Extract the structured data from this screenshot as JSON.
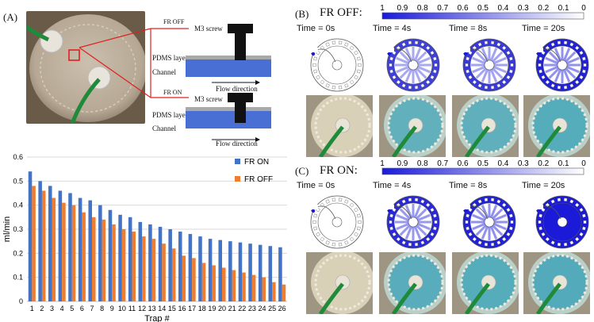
{
  "panel_a": {
    "label": "(A)",
    "diagram": {
      "off": {
        "state": "FR OFF",
        "screw": "M3 screw",
        "layer": "PDMS layer",
        "channel": "Channel",
        "flow": "Flow direction"
      },
      "on": {
        "state": "FR ON",
        "screw": "M3 screw",
        "layer": "PDMS layer",
        "channel": "Channel",
        "flow": "Flow direction"
      }
    }
  },
  "panel_b": {
    "label": "(B)",
    "title": "FR OFF:",
    "colorbar_ticks": [
      "1",
      "0.9",
      "0.8",
      "0.7",
      "0.6",
      "0.5",
      "0.4",
      "0.3",
      "0.2",
      "0.1",
      "0"
    ],
    "times": [
      "Time = 0s",
      "Time = 4s",
      "Time = 8s",
      "Time = 20s"
    ],
    "sim_fill": [
      0.05,
      0.75,
      0.8,
      0.95
    ]
  },
  "panel_c": {
    "label": "(C)",
    "title": "FR ON:",
    "colorbar_ticks": [
      "1",
      "0.9",
      "0.8",
      "0.7",
      "0.6",
      "0.5",
      "0.4",
      "0.3",
      "0.2",
      "0.1",
      "0"
    ],
    "times": [
      "Time = 0s",
      "Time = 4s",
      "Time = 8s",
      "Time = 20s"
    ],
    "sim_fill": [
      0.05,
      0.9,
      0.95,
      1.0
    ]
  },
  "colors": {
    "on": "#4472C4",
    "off": "#ED7D31",
    "sim": "#1a1ad8"
  },
  "chart_data": {
    "type": "bar",
    "xlabel": "Trap #",
    "ylabel": "ml/min",
    "ylim": [
      0,
      0.6
    ],
    "yticks": [
      "0",
      "0.1",
      "0.2",
      "0.3",
      "0.4",
      "0.5",
      "0.6"
    ],
    "legend_position": "top-right",
    "grid": true,
    "categories": [
      "1",
      "2",
      "3",
      "4",
      "5",
      "6",
      "7",
      "8",
      "9",
      "10",
      "11",
      "12",
      "13",
      "14",
      "15",
      "16",
      "17",
      "18",
      "19",
      "20",
      "21",
      "22",
      "23",
      "24",
      "25",
      "26"
    ],
    "series": [
      {
        "name": "FR ON",
        "values": [
          0.54,
          0.5,
          0.48,
          0.46,
          0.45,
          0.43,
          0.42,
          0.4,
          0.38,
          0.36,
          0.35,
          0.33,
          0.32,
          0.31,
          0.3,
          0.29,
          0.28,
          0.27,
          0.26,
          0.255,
          0.25,
          0.245,
          0.24,
          0.235,
          0.23,
          0.225
        ]
      },
      {
        "name": "FR OFF",
        "values": [
          0.48,
          0.46,
          0.43,
          0.41,
          0.4,
          0.37,
          0.35,
          0.34,
          0.32,
          0.3,
          0.29,
          0.27,
          0.26,
          0.24,
          0.22,
          0.19,
          0.18,
          0.16,
          0.15,
          0.14,
          0.13,
          0.12,
          0.11,
          0.1,
          0.08,
          0.07
        ]
      }
    ]
  }
}
